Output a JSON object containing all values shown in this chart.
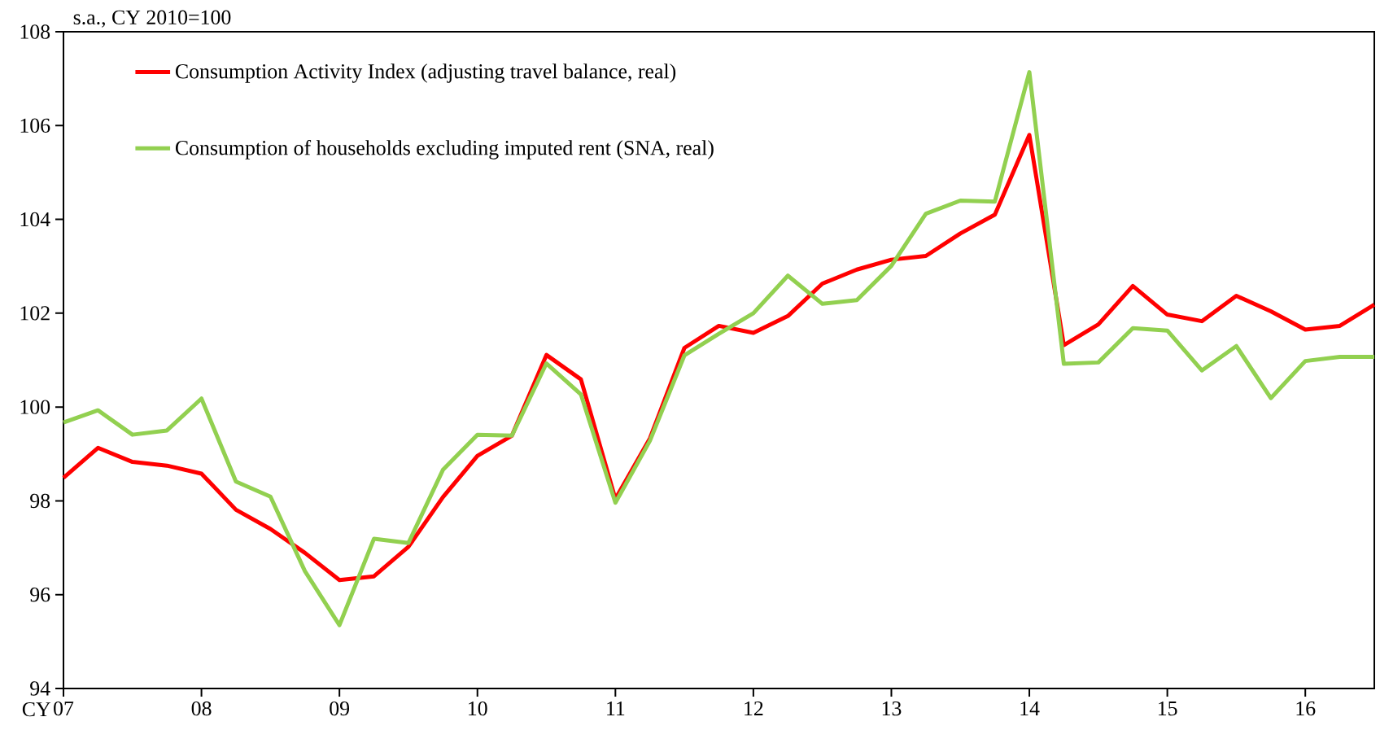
{
  "chart_data": {
    "type": "line",
    "ylabel": "s.a., CY 2010=100",
    "xlabel": "CY",
    "x": [
      2007,
      2007.25,
      2007.5,
      2007.75,
      2008,
      2008.25,
      2008.5,
      2008.75,
      2009,
      2009.25,
      2009.5,
      2009.75,
      2010,
      2010.25,
      2010.5,
      2010.75,
      2011,
      2011.25,
      2011.5,
      2011.75,
      2012,
      2012.25,
      2012.5,
      2012.75,
      2013,
      2013.25,
      2013.5,
      2013.75,
      2014,
      2014.25,
      2014.5,
      2014.75,
      2015,
      2015.25,
      2015.5,
      2015.75,
      2016,
      2016.25,
      2016.5
    ],
    "series": [
      {
        "name": "Consumption Activity Index (adjusting travel balance, real)",
        "color": "#ff0000",
        "values": [
          98.49,
          99.13,
          98.83,
          98.75,
          98.58,
          97.81,
          97.4,
          96.89,
          96.31,
          96.39,
          97.02,
          98.08,
          98.96,
          99.39,
          101.11,
          100.59,
          98.04,
          99.33,
          101.26,
          101.73,
          101.58,
          101.94,
          102.63,
          102.93,
          103.14,
          103.22,
          103.7,
          104.1,
          105.8,
          101.32,
          101.76,
          102.58,
          101.97,
          101.83,
          102.37,
          102.04,
          101.65,
          101.73,
          102.18
        ]
      },
      {
        "name": "Consumption of households excluding imputed rent (SNA, real)",
        "color": "#92d050",
        "values": [
          99.67,
          99.93,
          99.41,
          99.5,
          100.18,
          98.41,
          98.09,
          96.5,
          95.35,
          97.19,
          97.1,
          98.66,
          99.41,
          99.39,
          100.93,
          100.27,
          97.96,
          99.28,
          101.1,
          101.56,
          102.0,
          102.8,
          102.2,
          102.28,
          103.01,
          104.12,
          104.4,
          104.38,
          107.14,
          100.92,
          100.95,
          101.68,
          101.63,
          100.78,
          101.3,
          100.19,
          100.98,
          101.07,
          101.07
        ]
      }
    ],
    "xlim": [
      2007,
      2016.5
    ],
    "ylim": [
      94,
      108
    ],
    "xticks": [
      {
        "value": 2007,
        "label": "07"
      },
      {
        "value": 2008,
        "label": "08"
      },
      {
        "value": 2009,
        "label": "09"
      },
      {
        "value": 2010,
        "label": "10"
      },
      {
        "value": 2011,
        "label": "11"
      },
      {
        "value": 2012,
        "label": "12"
      },
      {
        "value": 2013,
        "label": "13"
      },
      {
        "value": 2014,
        "label": "14"
      },
      {
        "value": 2015,
        "label": "15"
      },
      {
        "value": 2016,
        "label": "16"
      }
    ],
    "yticks": [
      94,
      96,
      98,
      100,
      102,
      104,
      106,
      108
    ],
    "legend": "top left"
  }
}
